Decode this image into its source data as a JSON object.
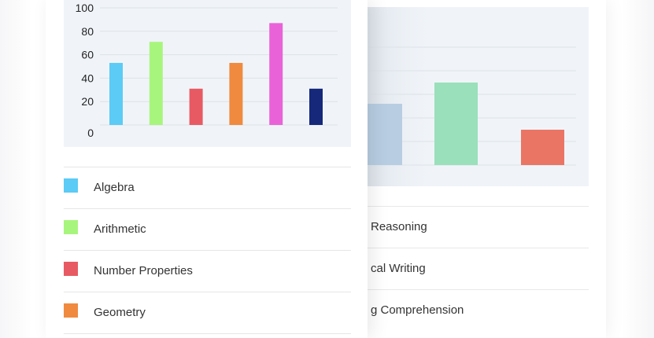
{
  "chart_data": [
    {
      "type": "bar",
      "categories": [
        "Algebra",
        "Arithmetic",
        "Number Properties",
        "Geometry",
        "",
        ""
      ],
      "values": [
        53,
        71,
        31,
        53,
        87,
        31
      ],
      "colors": [
        "#5ccbf5",
        "#a8f57d",
        "#e85a63",
        "#f08a3e",
        "#ea62d8",
        "#16287a"
      ],
      "ylim": [
        0,
        100
      ],
      "yticks": [
        "0",
        "20",
        "40",
        "60",
        "80",
        "100"
      ],
      "grid": true,
      "title": "",
      "xlabel": "",
      "ylabel": ""
    },
    {
      "type": "bar",
      "categories": [
        "Reasoning",
        "cal Writing",
        "g Comprehension"
      ],
      "values": [
        26,
        35,
        15
      ],
      "colors": [
        "#b8cde2",
        "#9ae0ba",
        "#ea7565"
      ],
      "grid": true,
      "title": "",
      "xlabel": "",
      "ylabel": ""
    }
  ],
  "legend_front": [
    {
      "label": "Algebra",
      "color": "#5ccbf5"
    },
    {
      "label": "Arithmetic",
      "color": "#a8f57d"
    },
    {
      "label": "Number Properties",
      "color": "#e85a63"
    },
    {
      "label": "Geometry",
      "color": "#f08a3e"
    }
  ],
  "legend_back": [
    {
      "label": "Reasoning"
    },
    {
      "label": "cal Writing"
    },
    {
      "label": "g Comprehension"
    }
  ]
}
